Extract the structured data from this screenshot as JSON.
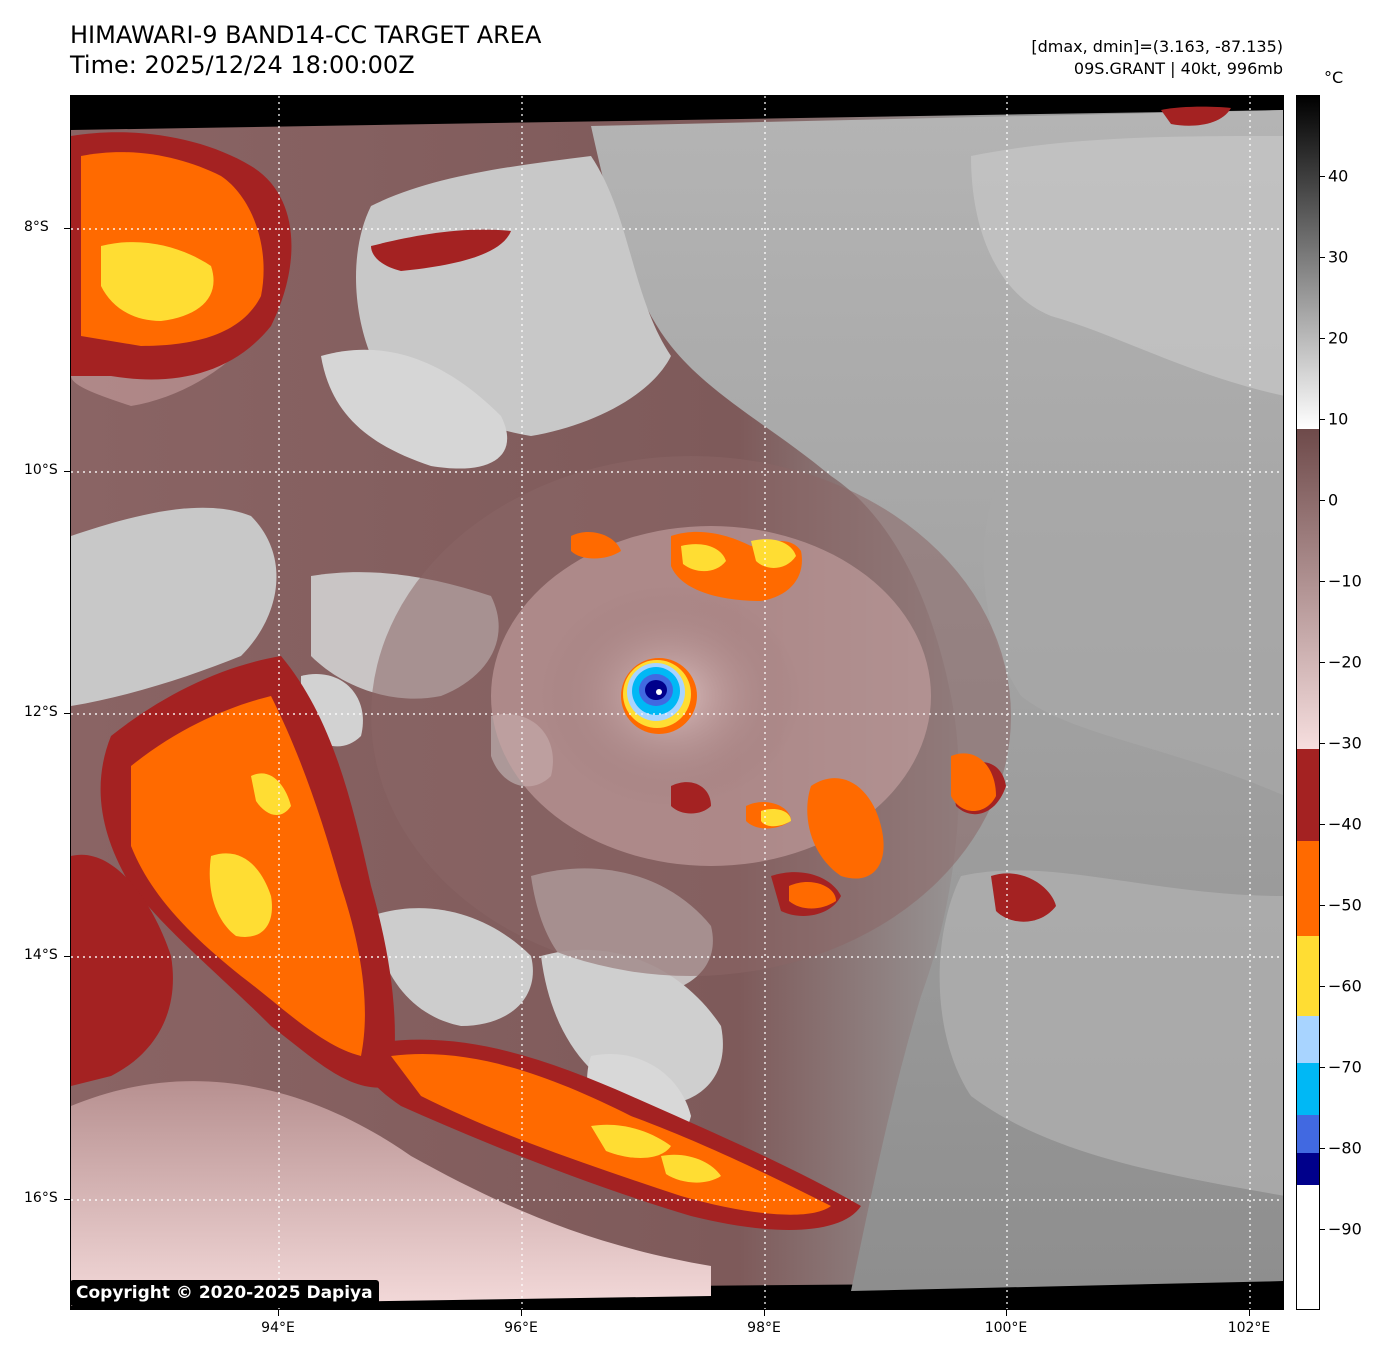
{
  "header": {
    "title_line1": "HIMAWARI-9 BAND14-CC TARGET AREA",
    "title_line2": "Time: 2025/12/24 18:00:00Z",
    "info_line1": "[dmax, dmin]=(3.163, -87.135)",
    "info_line2": "09S.GRANT | 40kt, 996mb"
  },
  "map": {
    "lat_labels": [
      "8°S",
      "10°S",
      "12°S",
      "14°S",
      "16°S"
    ],
    "lon_labels": [
      "94°E",
      "96°E",
      "98°E",
      "100°E",
      "102°E"
    ],
    "copyright": "Copyright © 2020-2025 Dapiya"
  },
  "colorbar": {
    "unit": "°C",
    "tick_labels": [
      "40",
      "30",
      "20",
      "10",
      "0",
      "−10",
      "−20",
      "−30",
      "−40",
      "−50",
      "−60",
      "−70",
      "−80",
      "−90"
    ],
    "ticks": [
      40,
      30,
      20,
      10,
      0,
      -10,
      -20,
      -30,
      -40,
      -50,
      -60,
      -70,
      -80,
      -90
    ],
    "range": [
      50,
      -100
    ],
    "colors": {
      "warm_gray_top": "#000000",
      "warm_gray_bottom": "#ffffff",
      "mauve_top": "#6e4a4a",
      "mauve_bottom": "#f6dede",
      "dark_red": "#a42222",
      "orange": "#ff6a00",
      "yellow": "#ffdd33",
      "light_blue": "#a8d4ff",
      "cyan": "#00b8f5",
      "royal_blue": "#4169e1",
      "navy": "#00008b",
      "white": "#ffffff"
    }
  }
}
